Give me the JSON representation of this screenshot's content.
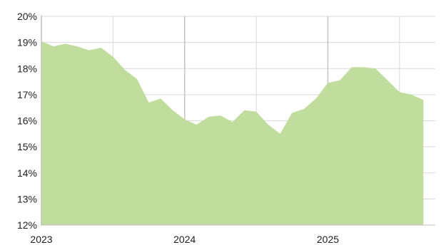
{
  "chart_data": {
    "type": "area",
    "title": "",
    "xlabel": "",
    "ylabel": "",
    "x_ticks": [
      "2023",
      "2024",
      "2025"
    ],
    "y_ticks": [
      "20%",
      "19%",
      "18%",
      "17%",
      "16%",
      "15%",
      "14%",
      "13%",
      "12%"
    ],
    "ylim": [
      12,
      20
    ],
    "xlim": [
      "2023-01",
      "2025-10"
    ],
    "y_unit": "%",
    "grid": true,
    "legend": "none",
    "fill_color": "#c0dd9e",
    "grid_color": "#d9d9d9",
    "series": [
      {
        "x": [
          "2023-01",
          "2023-02",
          "2023-03",
          "2023-04",
          "2023-05",
          "2023-06",
          "2023-07",
          "2023-08",
          "2023-09",
          "2023-10",
          "2023-11",
          "2023-12",
          "2024-01",
          "2024-02",
          "2024-03",
          "2024-04",
          "2024-05",
          "2024-06",
          "2024-07",
          "2024-08",
          "2024-09",
          "2024-10",
          "2024-11",
          "2024-12",
          "2025-01",
          "2025-02",
          "2025-03",
          "2025-04",
          "2025-05",
          "2025-06",
          "2025-07",
          "2025-08",
          "2025-09"
        ],
        "values": [
          19.05,
          18.85,
          18.95,
          18.85,
          18.7,
          18.8,
          18.45,
          17.95,
          17.6,
          16.7,
          16.85,
          16.4,
          16.05,
          15.85,
          16.15,
          16.2,
          15.95,
          16.4,
          16.35,
          15.85,
          15.5,
          16.3,
          16.45,
          16.85,
          17.45,
          17.55,
          18.05,
          18.05,
          18.0,
          17.55,
          17.1,
          17.0,
          16.8
        ]
      }
    ]
  }
}
